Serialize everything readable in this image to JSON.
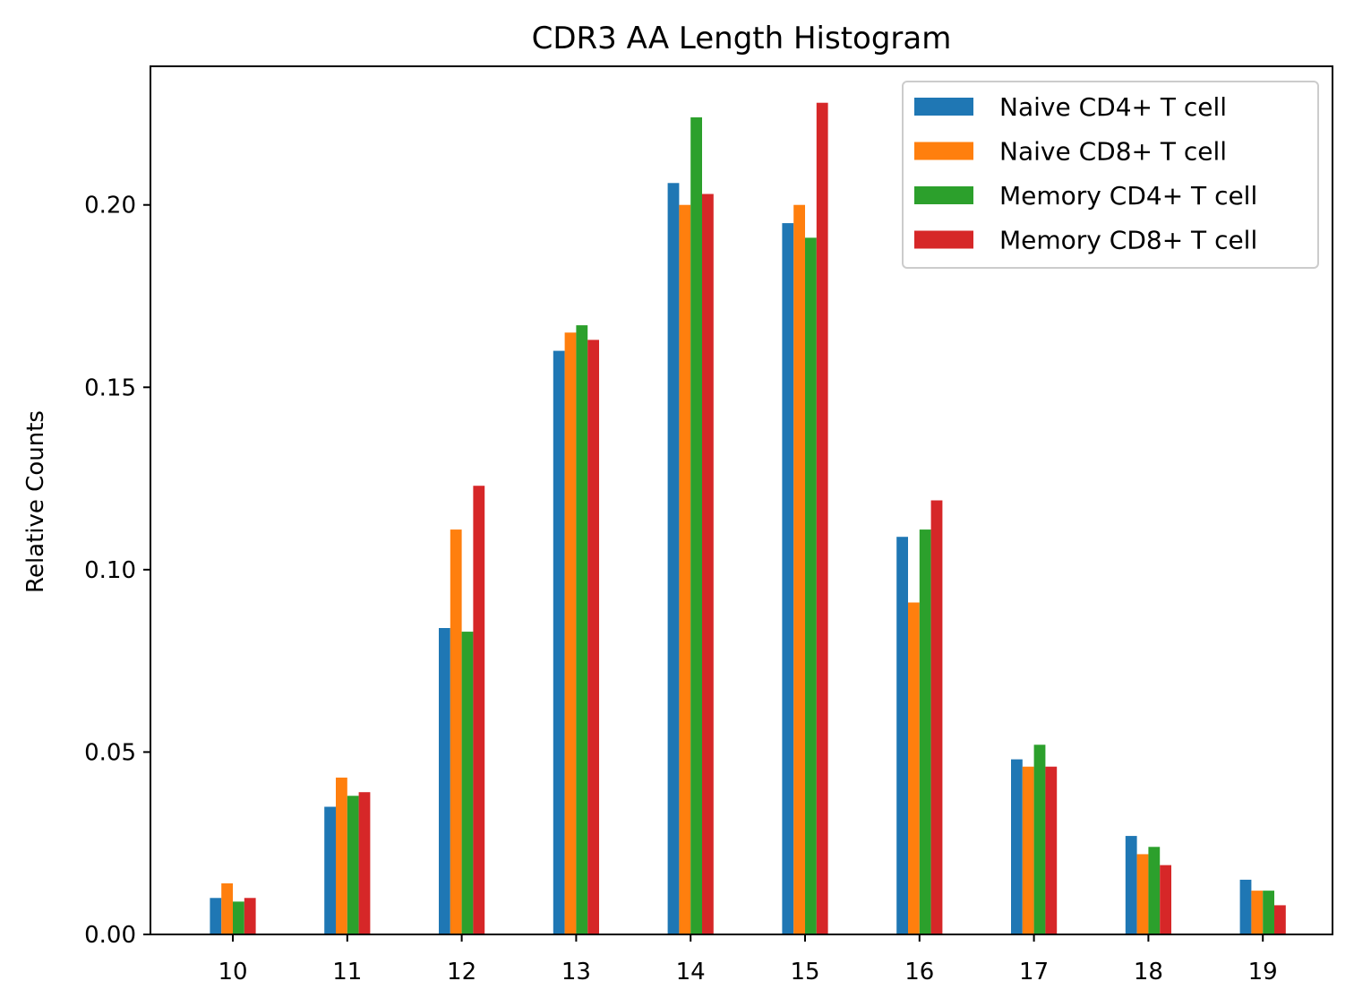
{
  "chart_data": {
    "type": "bar",
    "title": "CDR3 AA Length Histogram",
    "xlabel": "",
    "ylabel": "Relative Counts",
    "categories": [
      "10",
      "11",
      "12",
      "13",
      "14",
      "15",
      "16",
      "17",
      "18",
      "19"
    ],
    "ylim": [
      0,
      0.238
    ],
    "yticks": [
      "0.00",
      "0.05",
      "0.10",
      "0.15",
      "0.20"
    ],
    "grid": false,
    "legend": "top-right",
    "series": [
      {
        "name": "Naive CD4+ T cell",
        "color": "#1f77b4",
        "values": [
          0.01,
          0.035,
          0.084,
          0.16,
          0.206,
          0.195,
          0.109,
          0.048,
          0.027,
          0.015
        ]
      },
      {
        "name": "Naive CD8+ T cell",
        "color": "#ff7f0e",
        "values": [
          0.014,
          0.043,
          0.111,
          0.165,
          0.2,
          0.2,
          0.091,
          0.046,
          0.022,
          0.012
        ]
      },
      {
        "name": "Memory CD4+ T cell",
        "color": "#2ca02c",
        "values": [
          0.009,
          0.038,
          0.083,
          0.167,
          0.224,
          0.191,
          0.111,
          0.052,
          0.024,
          0.012
        ]
      },
      {
        "name": "Memory CD8+ T cell",
        "color": "#d62728",
        "values": [
          0.01,
          0.039,
          0.123,
          0.163,
          0.203,
          0.228,
          0.119,
          0.046,
          0.019,
          0.008
        ]
      }
    ]
  }
}
